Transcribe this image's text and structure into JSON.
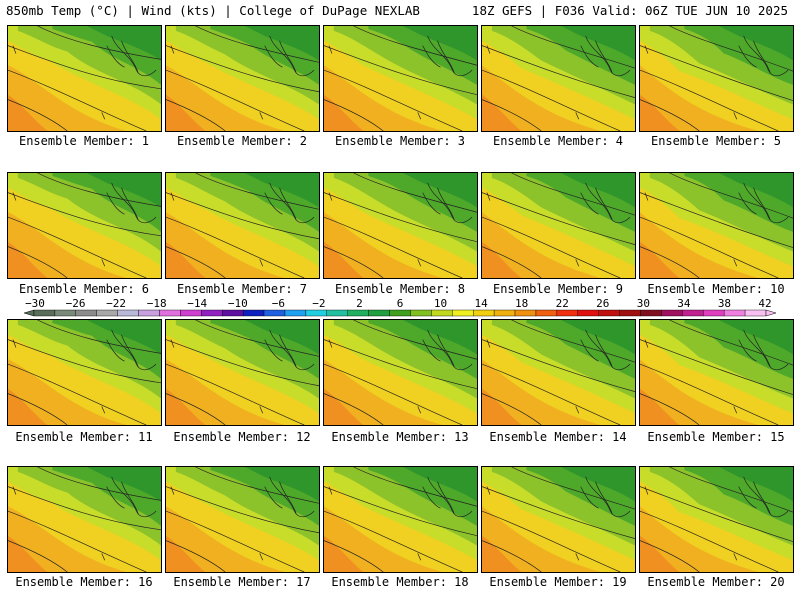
{
  "header": {
    "left": "850mb Temp (°C) | Wind (kts) | College of DuPage NEXLAB",
    "right": "18Z GEFS | F036 Valid: 06Z TUE JUN 10 2025"
  },
  "panels": [
    {
      "label": "Ensemble Member: 1"
    },
    {
      "label": "Ensemble Member: 2"
    },
    {
      "label": "Ensemble Member: 3"
    },
    {
      "label": "Ensemble Member: 4"
    },
    {
      "label": "Ensemble Member: 5"
    },
    {
      "label": "Ensemble Member: 6"
    },
    {
      "label": "Ensemble Member: 7"
    },
    {
      "label": "Ensemble Member: 8"
    },
    {
      "label": "Ensemble Member: 9"
    },
    {
      "label": "Ensemble Member: 10"
    },
    {
      "label": "Ensemble Member: 11"
    },
    {
      "label": "Ensemble Member: 12"
    },
    {
      "label": "Ensemble Member: 13"
    },
    {
      "label": "Ensemble Member: 14"
    },
    {
      "label": "Ensemble Member: 15"
    },
    {
      "label": "Ensemble Member: 16"
    },
    {
      "label": "Ensemble Member: 17"
    },
    {
      "label": "Ensemble Member: 18"
    },
    {
      "label": "Ensemble Member: 19"
    },
    {
      "label": "Ensemble Member: 20"
    }
  ],
  "colorbar": {
    "ticks": [
      "−30",
      "−26",
      "−22",
      "−18",
      "−14",
      "−10",
      "−6",
      "−2",
      "2",
      "6",
      "10",
      "14",
      "18",
      "22",
      "26",
      "30",
      "34",
      "38",
      "42"
    ],
    "colors": [
      "#5a6e5a",
      "#7a8a7a",
      "#8c8c8c",
      "#a8a8a8",
      "#b8b8d8",
      "#c8a0e0",
      "#e070e0",
      "#d040d0",
      "#9020c0",
      "#6010a0",
      "#1020c0",
      "#2060e0",
      "#20a0f0",
      "#20d0e0",
      "#20c0a0",
      "#20b060",
      "#20a040",
      "#40a020",
      "#80c020",
      "#c0d820",
      "#f0f020",
      "#f0d010",
      "#f0b010",
      "#f09010",
      "#f06010",
      "#f03010",
      "#e01010",
      "#c01010",
      "#a01010",
      "#801020",
      "#a01060",
      "#c02090",
      "#e040c0",
      "#f080e0",
      "#f8c0f0"
    ]
  }
}
